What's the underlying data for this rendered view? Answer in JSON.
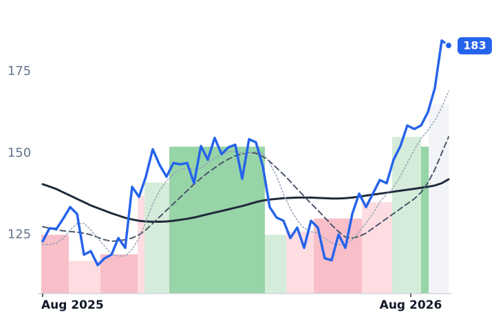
{
  "chart_data": {
    "type": "line",
    "x": [
      0,
      1,
      2,
      3,
      4,
      5,
      6,
      7,
      8,
      9,
      10,
      11,
      12,
      13,
      14,
      15,
      16,
      17,
      18,
      19,
      20,
      21,
      22,
      23,
      24,
      25,
      26,
      27,
      28,
      29,
      30,
      31,
      32,
      33,
      34,
      35,
      36,
      37,
      38,
      39,
      40,
      41,
      42,
      43,
      44,
      45,
      46,
      47,
      48,
      49,
      50,
      51,
      52,
      53,
      54,
      55,
      56,
      57,
      58,
      59
    ],
    "xlim": [
      -0.4,
      59.5
    ],
    "xticks": [
      {
        "value": 0,
        "label": "Aug 2025"
      },
      {
        "value": 53.5,
        "label": "Aug 2026"
      }
    ],
    "ylim": [
      107,
      188.5
    ],
    "yticks": [
      125,
      150,
      175
    ],
    "series": [
      {
        "color": "#2563eb",
        "style": "solid",
        "values": [
          123,
          127,
          126.8,
          130,
          133.5,
          131.4,
          118.9,
          120,
          115.7,
          117.8,
          118.9,
          124,
          121,
          139.7,
          136.6,
          142.8,
          151.2,
          146.4,
          142.8,
          147,
          146.6,
          147,
          140.8,
          152.2,
          148,
          154.7,
          149.7,
          151.8,
          152.6,
          142.2,
          154.3,
          153.3,
          146,
          133.5,
          130.3,
          129.3,
          124,
          127.2,
          121,
          129.3,
          127.2,
          117.8,
          117.2,
          125.1,
          121,
          131.4,
          137.6,
          133.5,
          137.6,
          141.8,
          140.8,
          148,
          152.2,
          158.5,
          157.4,
          158.5,
          162.6,
          169.9,
          184.5,
          183
        ]
      },
      {
        "color": "#94a3b8",
        "style": "dotted",
        "values": [
          122,
          122,
          122.5,
          124,
          126.5,
          128.5,
          128.5,
          126.5,
          124,
          121.5,
          119,
          118.5,
          118.5,
          120.5,
          124,
          129,
          134.5,
          138.5,
          141.5,
          143.5,
          145,
          145.5,
          145,
          145.5,
          147,
          148.5,
          149.5,
          150.5,
          150.5,
          150,
          150,
          150.5,
          150,
          147,
          143,
          137.5,
          133,
          129.5,
          127,
          126,
          125.5,
          124,
          122.5,
          122,
          122,
          123.5,
          126,
          128.5,
          131.5,
          135,
          137.5,
          139.5,
          143,
          147,
          151,
          154.5,
          157,
          160,
          164,
          169
        ]
      },
      {
        "color": "#475569",
        "style": "dashed",
        "values": [
          127.5,
          127,
          126.5,
          126.2,
          126,
          125.8,
          125.5,
          125,
          124.2,
          123.5,
          123,
          123.2,
          123.5,
          124,
          125,
          126.5,
          128.5,
          130.5,
          132.5,
          134.5,
          136.5,
          138.5,
          140.5,
          142.3,
          144,
          145.5,
          147,
          148.2,
          149.2,
          149.8,
          150.2,
          150,
          149,
          147.5,
          145.5,
          143.5,
          141.3,
          139,
          136.8,
          134.6,
          132.5,
          130.3,
          128,
          126,
          124.3,
          124,
          124.5,
          125.5,
          127,
          128.5,
          130,
          131.5,
          133,
          134.5,
          136,
          138,
          141,
          145,
          150,
          155
        ]
      },
      {
        "color": "#1e293b",
        "style": "solid",
        "values": [
          140.5,
          139.8,
          139,
          138,
          137,
          136,
          135,
          134,
          133.2,
          132.4,
          131.6,
          130.9,
          130.2,
          129.7,
          129.3,
          129.1,
          129,
          129,
          129.1,
          129.3,
          129.6,
          129.9,
          130.3,
          130.8,
          131.3,
          131.8,
          132.3,
          132.8,
          133.3,
          133.8,
          134.4,
          135,
          135.5,
          135.8,
          136,
          136.2,
          136.3,
          136.4,
          136.4,
          136.4,
          136.3,
          136.2,
          136.1,
          136.1,
          136.2,
          136.4,
          136.7,
          137,
          137.3,
          137.6,
          137.9,
          138.2,
          138.5,
          138.8,
          139.1,
          139.4,
          139.7,
          140.1,
          140.8,
          142
        ]
      }
    ],
    "bands": [
      {
        "x0": -0.2,
        "x1": 3.8,
        "top": 125,
        "color": "#f8bfc8"
      },
      {
        "x0": 3.8,
        "x1": 8.4,
        "top": 117,
        "color": "#fddde2"
      },
      {
        "x0": 8.4,
        "x1": 13.8,
        "top": 119,
        "color": "#f8bfc8"
      },
      {
        "x0": 13.8,
        "x1": 14.8,
        "top": 137,
        "color": "#fddde2"
      },
      {
        "x0": 14.8,
        "x1": 18.4,
        "top": 141,
        "color": "#d4ecd9"
      },
      {
        "x0": 18.4,
        "x1": 32.3,
        "top": 152,
        "color": "#97d4a7"
      },
      {
        "x0": 32.3,
        "x1": 35.4,
        "top": 125,
        "color": "#d4ecd9"
      },
      {
        "x0": 35.4,
        "x1": 39.4,
        "top": 126,
        "color": "#fddde2"
      },
      {
        "x0": 39.4,
        "x1": 46.4,
        "top": 130,
        "color": "#f8bfc8"
      },
      {
        "x0": 46.4,
        "x1": 50.8,
        "top": 135,
        "color": "#fddde2"
      },
      {
        "x0": 50.8,
        "x1": 55,
        "top": 155,
        "color": "#d4ecd9"
      },
      {
        "x0": 55,
        "x1": 56.1,
        "top": 152,
        "color": "#97d4a7"
      },
      {
        "x0": 56.1,
        "x1": 59,
        "top": 165,
        "color": "#f3f4f8"
      }
    ]
  }
}
